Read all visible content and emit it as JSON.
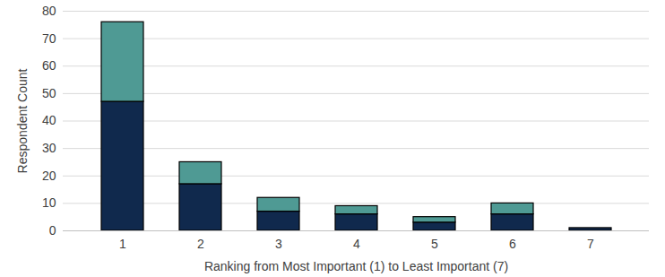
{
  "chart_data": {
    "type": "bar",
    "stacked": true,
    "x_label": "Ranking from Most Important (1) to Least Important (7)",
    "y_label": "Respondent Count",
    "categories": [
      "1",
      "2",
      "3",
      "4",
      "5",
      "6",
      "7"
    ],
    "series": [
      {
        "color": "#10294d",
        "values": [
          47,
          17,
          7,
          6,
          3,
          6,
          1
        ]
      },
      {
        "color": "#4f9a94",
        "values": [
          29,
          8,
          5,
          3,
          2,
          4,
          0
        ]
      }
    ],
    "ylim": [
      0,
      80
    ],
    "yticks": [
      0,
      10,
      20,
      30,
      40,
      50,
      60,
      70,
      80
    ],
    "grid": true
  }
}
